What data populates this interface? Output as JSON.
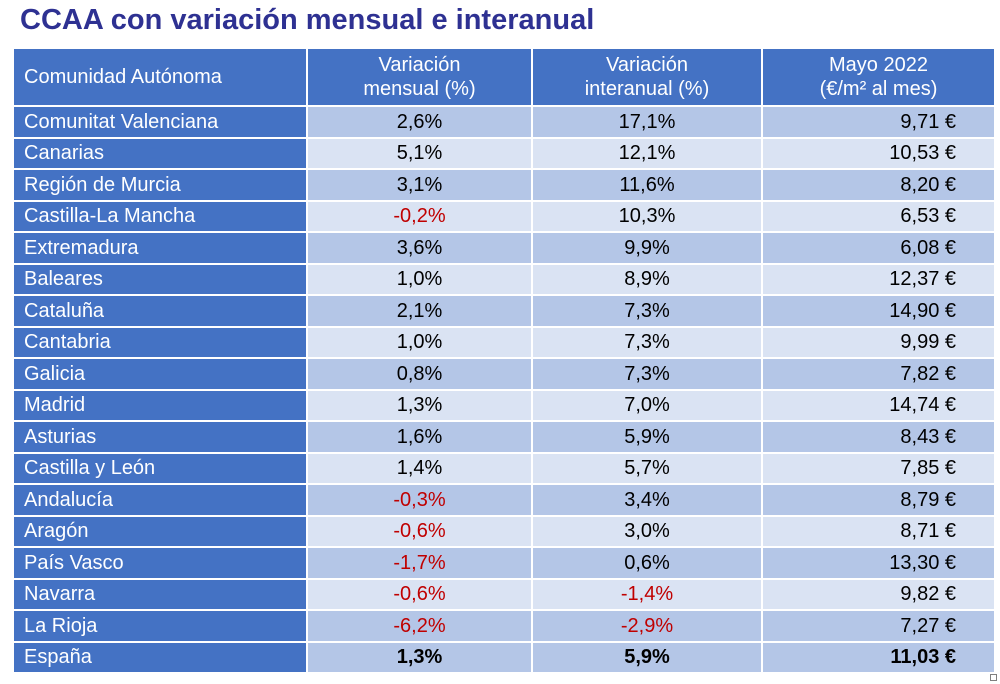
{
  "title": "CCAA con variación mensual e interanual",
  "headers": {
    "region": "Comunidad Autónoma",
    "monthly_l1": "Variación",
    "monthly_l2": "mensual (%)",
    "annual_l1": "Variación",
    "annual_l2": "interanual (%)",
    "price_l1": "Mayo 2022",
    "price_l2": "(€/m² al mes)"
  },
  "rows": [
    {
      "region": "Comunitat Valenciana",
      "monthly": "2,6%",
      "annual": "17,1%",
      "price": "9,71 €"
    },
    {
      "region": "Canarias",
      "monthly": "5,1%",
      "annual": "12,1%",
      "price": "10,53 €"
    },
    {
      "region": "Región de Murcia",
      "monthly": "3,1%",
      "annual": "11,6%",
      "price": "8,20 €"
    },
    {
      "region": "Castilla-La Mancha",
      "monthly": "-0,2%",
      "annual": "10,3%",
      "price": "6,53 €"
    },
    {
      "region": "Extremadura",
      "monthly": "3,6%",
      "annual": "9,9%",
      "price": "6,08 €"
    },
    {
      "region": "Baleares",
      "monthly": "1,0%",
      "annual": "8,9%",
      "price": "12,37 €"
    },
    {
      "region": "Cataluña",
      "monthly": "2,1%",
      "annual": "7,3%",
      "price": "14,90 €"
    },
    {
      "region": "Cantabria",
      "monthly": "1,0%",
      "annual": "7,3%",
      "price": "9,99 €"
    },
    {
      "region": "Galicia",
      "monthly": "0,8%",
      "annual": "7,3%",
      "price": "7,82 €"
    },
    {
      "region": "Madrid",
      "monthly": "1,3%",
      "annual": "7,0%",
      "price": "14,74 €"
    },
    {
      "region": "Asturias",
      "monthly": "1,6%",
      "annual": "5,9%",
      "price": "8,43 €"
    },
    {
      "region": "Castilla y León",
      "monthly": "1,4%",
      "annual": "5,7%",
      "price": "7,85 €"
    },
    {
      "region": "Andalucía",
      "monthly": "-0,3%",
      "annual": "3,4%",
      "price": "8,79 €"
    },
    {
      "region": "Aragón",
      "monthly": "-0,6%",
      "annual": "3,0%",
      "price": "8,71 €"
    },
    {
      "region": "País Vasco",
      "monthly": "-1,7%",
      "annual": "0,6%",
      "price": "13,30 €"
    },
    {
      "region": "Navarra",
      "monthly": "-0,6%",
      "annual": "-1,4%",
      "price": "9,82 €"
    },
    {
      "region": "La Rioja",
      "monthly": "-6,2%",
      "annual": "-2,9%",
      "price": "7,27 €"
    }
  ],
  "total": {
    "region": "España",
    "monthly": "1,3%",
    "annual": "5,9%",
    "price": "11,03 €"
  },
  "colors": {
    "title": "#2E3192",
    "header_bg": "#4472C4",
    "row_dark": "#B4C6E7",
    "row_light": "#DAE3F3",
    "negative": "#C00000"
  }
}
